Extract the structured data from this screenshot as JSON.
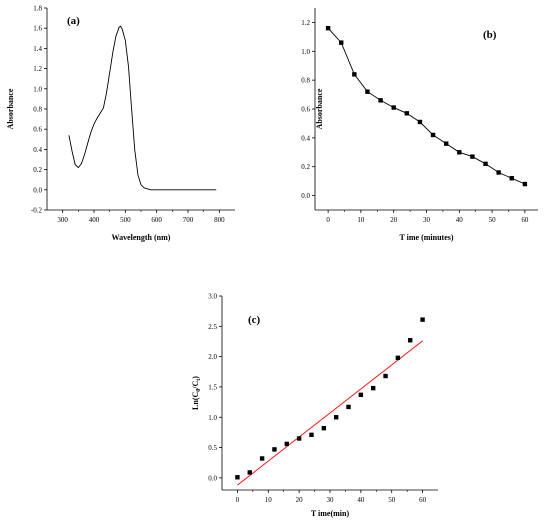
{
  "chart_data": [
    {
      "type": "line",
      "panel_label": "(a)",
      "title": "",
      "xlabel": "Wavelength (nm)",
      "ylabel": "Absorbance",
      "xlim": [
        250,
        850
      ],
      "ylim": [
        -0.2,
        1.8
      ],
      "xticks": [
        300,
        400,
        500,
        600,
        700,
        800
      ],
      "yticks": [
        -0.2,
        0.0,
        0.2,
        0.4,
        0.6,
        0.8,
        1.0,
        1.2,
        1.4,
        1.6,
        1.8
      ],
      "ytick_labels": [
        "-0.2",
        "0.0",
        "0.2",
        "0.4",
        "0.6",
        "0.8",
        "1.0",
        "1.2",
        "1.4",
        "1.6",
        "1.8"
      ],
      "grid": false,
      "series": [
        {
          "color": "#000000",
          "x": [
            320,
            330,
            340,
            350,
            360,
            370,
            380,
            390,
            400,
            410,
            420,
            430,
            440,
            450,
            460,
            470,
            480,
            485,
            490,
            500,
            510,
            520,
            530,
            540,
            550,
            560,
            570,
            580,
            600,
            650,
            700,
            750,
            790
          ],
          "y": [
            0.54,
            0.38,
            0.25,
            0.22,
            0.26,
            0.35,
            0.46,
            0.57,
            0.65,
            0.71,
            0.76,
            0.81,
            0.96,
            1.16,
            1.36,
            1.52,
            1.61,
            1.62,
            1.59,
            1.48,
            1.22,
            0.8,
            0.4,
            0.15,
            0.05,
            0.02,
            0.01,
            0.0,
            0.0,
            0.0,
            0.0,
            0.0,
            0.0
          ]
        }
      ]
    },
    {
      "type": "line",
      "panel_label": "(b)",
      "title": "",
      "xlabel": "T ime (minutes)",
      "ylabel": "Absorbance",
      "xlim": [
        -4,
        64
      ],
      "ylim": [
        -0.1,
        1.3
      ],
      "xticks": [
        0,
        10,
        20,
        30,
        40,
        50,
        60
      ],
      "yticks": [
        0.0,
        0.2,
        0.4,
        0.6,
        0.8,
        1.0,
        1.2
      ],
      "ytick_labels": [
        "0.0",
        "0.2",
        "0.4",
        "0.6",
        "0.8",
        "1.0",
        "1.2"
      ],
      "grid": false,
      "series": [
        {
          "color": "#000000",
          "marker": "square",
          "x": [
            0,
            4,
            8,
            12,
            16,
            20,
            24,
            28,
            32,
            36,
            40,
            44,
            48,
            52,
            56,
            60
          ],
          "y": [
            1.16,
            1.06,
            0.84,
            0.72,
            0.66,
            0.61,
            0.57,
            0.51,
            0.42,
            0.36,
            0.3,
            0.27,
            0.22,
            0.16,
            0.12,
            0.08
          ]
        }
      ]
    },
    {
      "type": "scatter",
      "panel_label": "(c)",
      "title": "",
      "xlabel": "T ime(min)",
      "ylabel": "Ln(C0/Ct)",
      "ylabel_parts": [
        "Ln(C",
        "0",
        "/C",
        "t",
        ")"
      ],
      "xlim": [
        -5,
        65
      ],
      "ylim": [
        -0.2,
        3.0
      ],
      "xticks": [
        0,
        10,
        20,
        30,
        40,
        50,
        60
      ],
      "yticks": [
        0.0,
        0.5,
        1.0,
        1.5,
        2.0,
        2.5,
        3.0
      ],
      "ytick_labels": [
        "0.0",
        "0.5",
        "1.0",
        "1.5",
        "2.0",
        "2.5",
        "3.0"
      ],
      "grid": false,
      "series": [
        {
          "color": "#000000",
          "marker": "square",
          "x": [
            0,
            4,
            8,
            12,
            16,
            20,
            24,
            28,
            32,
            36,
            40,
            44,
            48,
            52,
            56,
            60
          ],
          "y": [
            0.01,
            0.09,
            0.32,
            0.47,
            0.56,
            0.65,
            0.71,
            0.82,
            1.0,
            1.17,
            1.37,
            1.48,
            1.68,
            1.98,
            2.27,
            2.61
          ]
        }
      ],
      "fit_line": {
        "color": "#ff0000",
        "x": [
          0,
          60
        ],
        "y": [
          -0.12,
          2.26
        ]
      }
    }
  ]
}
